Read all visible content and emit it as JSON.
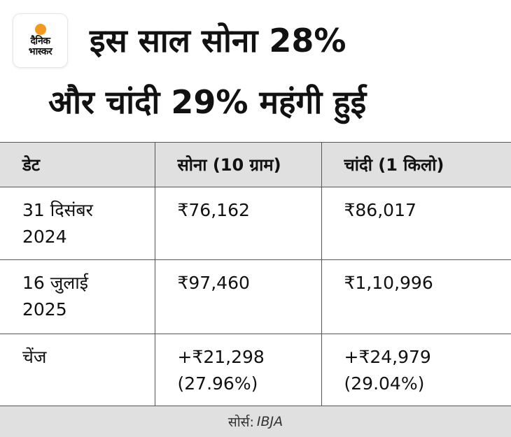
{
  "logo": {
    "line1": "दैनिक",
    "line2": "भास्कर",
    "accent_color": "#f39a1e"
  },
  "title": {
    "line1": "इस साल सोना 28%",
    "line2": "और चांदी 29% महंगी हुई"
  },
  "table": {
    "headers": [
      "डेट",
      "सोना (10 ग्राम)",
      "चांदी (1 किलो)"
    ],
    "rows": [
      {
        "date_line1": "31 दिसंबर",
        "date_line2": "2024",
        "gold_line1": "₹76,162",
        "gold_line2": "",
        "silver_line1": "₹86,017",
        "silver_line2": ""
      },
      {
        "date_line1": "16 जुलाई",
        "date_line2": "2025",
        "gold_line1": "₹97,460",
        "gold_line2": "",
        "silver_line1": "₹1,10,996",
        "silver_line2": ""
      },
      {
        "date_line1": "चेंज",
        "date_line2": "",
        "gold_line1": "+₹21,298",
        "gold_line2": "(27.96%)",
        "silver_line1": "+₹24,979",
        "silver_line2": "(29.04%)"
      }
    ]
  },
  "footer": {
    "label": "सोर्स:",
    "source": "IBJA"
  }
}
